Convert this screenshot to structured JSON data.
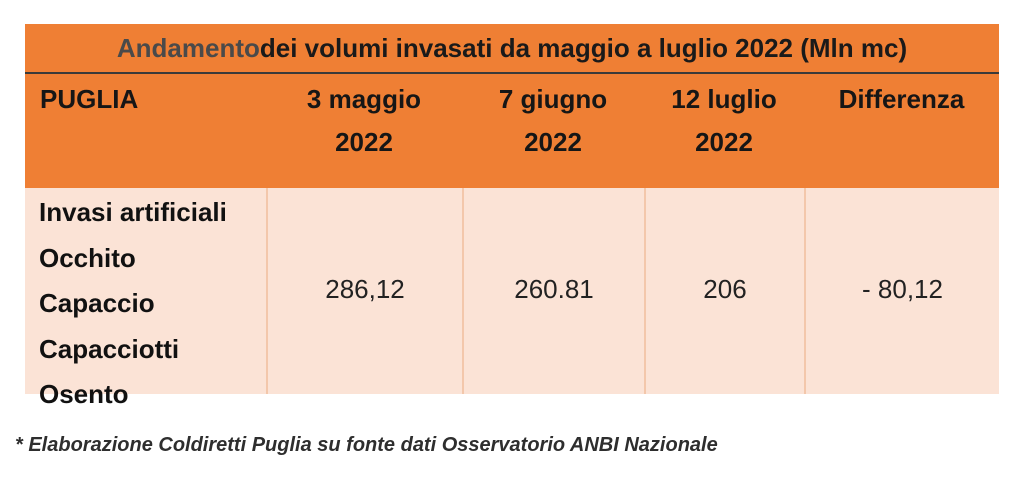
{
  "table": {
    "title": {
      "accent": "Andamento",
      "rest": " dei volumi invasati da maggio a luglio 2022 (Mln mc)"
    },
    "header": {
      "region": "PUGLIA",
      "col1_line1": "3 maggio",
      "col1_line2": "2022",
      "col2_line1": "7 giugno",
      "col2_line2": "2022",
      "col3_line1": "12 luglio",
      "col3_line2": "2022",
      "col4": "Differenza"
    },
    "reservoirs": [
      "Invasi artificiali",
      "Occhito",
      "Capaccio",
      "Capacciotti",
      "Osento"
    ],
    "values": {
      "may_3": "286,12",
      "june_7": "260.81",
      "july_12": "206",
      "difference": "- 80,12"
    },
    "colors": {
      "header_bg": "#ef7f34",
      "body_bg": "#fbe3d6"
    }
  },
  "footnote": "* Elaborazione Coldiretti Puglia su fonte dati Osservatorio ANBI Nazionale"
}
